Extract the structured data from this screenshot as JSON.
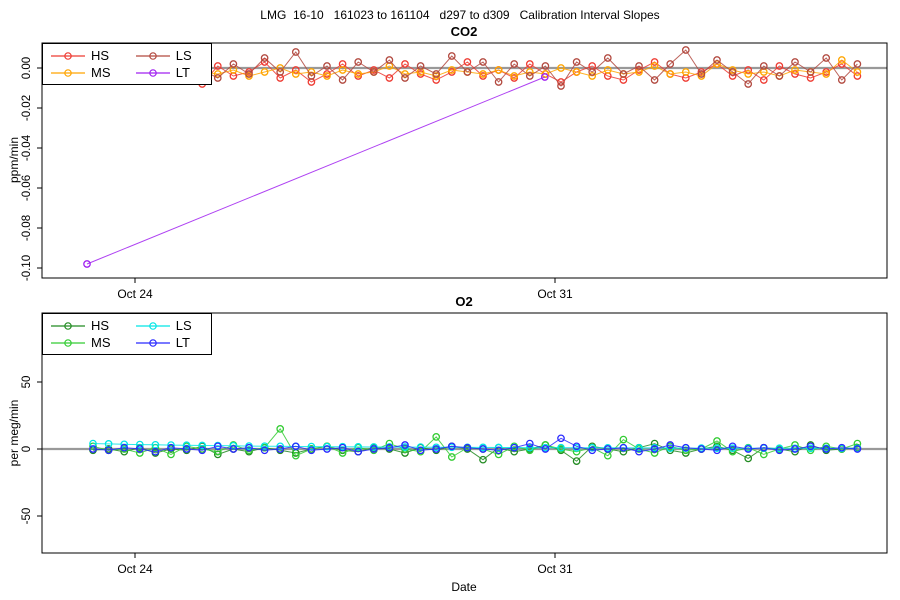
{
  "title": "LMG  16-10   161023 to 161104   d297 to d309   Calibration Interval Slopes",
  "x_axis": {
    "label": "Date",
    "tick_labels": [
      "Oct 24",
      "Oct 31"
    ],
    "tick_days": [
      24,
      31
    ]
  },
  "chart_data": [
    {
      "type": "line",
      "title": "CO2",
      "ylabel": "ppm/min",
      "ylim": [
        -0.105,
        0.012
      ],
      "grid": false,
      "zero_line_color": "#999999",
      "ytick_values": [
        0.0,
        -0.02,
        -0.04,
        -0.06,
        -0.08,
        -0.1
      ],
      "ytick_labels": [
        "0.00",
        "-0.02",
        "-0.04",
        "-0.06",
        "-0.08",
        "-0.10"
      ],
      "legend": {
        "position": "top-left",
        "entries": [
          {
            "name": "HS",
            "color": "#ee3b32"
          },
          {
            "name": "LS",
            "color": "#b2493f"
          },
          {
            "name": "MS",
            "color": "#ffa500"
          },
          {
            "name": "LT",
            "color": "#a020f0"
          }
        ]
      },
      "x_days": [
        23.3,
        23.56,
        23.82,
        24.08,
        24.34,
        24.6,
        24.86,
        25.12,
        25.38,
        25.64,
        25.9,
        26.16,
        26.42,
        26.68,
        26.94,
        27.2,
        27.46,
        27.72,
        27.98,
        28.24,
        28.5,
        28.76,
        29.02,
        29.28,
        29.54,
        29.8,
        30.06,
        30.32,
        30.58,
        30.84,
        31.1,
        31.36,
        31.62,
        31.88,
        32.14,
        32.4,
        32.66,
        32.92,
        33.18,
        33.44,
        33.7,
        33.96,
        34.22,
        34.48,
        34.74,
        35.0,
        35.26,
        35.52,
        35.78,
        36.04
      ],
      "series": [
        {
          "name": "HS",
          "color": "#ee3b32",
          "values": [
            -0.003,
            0.002,
            -0.005,
            -0.002,
            0.003,
            -0.006,
            -0.002,
            -0.008,
            0.001,
            -0.004,
            -0.002,
            0.003,
            -0.005,
            -0.001,
            -0.007,
            -0.003,
            0.002,
            -0.004,
            -0.001,
            -0.005,
            0.002,
            -0.003,
            -0.006,
            -0.002,
            0.003,
            -0.004,
            -0.001,
            -0.005,
            0.002,
            -0.003,
            -0.007,
            -0.002,
            0.001,
            -0.004,
            -0.006,
            -0.001,
            0.003,
            -0.003,
            -0.005,
            -0.002,
            0.002,
            -0.004,
            -0.001,
            -0.006,
            0.001,
            -0.003,
            -0.005,
            -0.002,
            0.002,
            -0.004
          ]
        },
        {
          "name": "MS",
          "color": "#ffa500",
          "values": [
            -0.002,
            -0.004,
            -0.001,
            -0.003,
            -0.002,
            -0.004,
            -0.001,
            -0.002,
            -0.003,
            -0.001,
            -0.004,
            -0.002,
            0.0,
            -0.003,
            -0.002,
            -0.004,
            -0.001,
            -0.003,
            -0.002,
            0.001,
            -0.003,
            -0.002,
            -0.004,
            -0.001,
            -0.002,
            -0.003,
            -0.001,
            -0.004,
            -0.002,
            -0.003,
            0.0,
            -0.002,
            -0.004,
            -0.001,
            -0.003,
            -0.002,
            0.001,
            -0.003,
            -0.002,
            -0.004,
            0.002,
            -0.001,
            -0.003,
            -0.002,
            -0.004,
            -0.001,
            -0.002,
            -0.003,
            0.004,
            -0.002
          ]
        },
        {
          "name": "LS",
          "color": "#b2493f",
          "values": [
            0.002,
            -0.004,
            0.003,
            -0.006,
            0.001,
            -0.003,
            0.004,
            -0.001,
            -0.005,
            0.002,
            -0.003,
            0.005,
            -0.002,
            0.008,
            -0.004,
            0.001,
            -0.006,
            0.003,
            -0.002,
            0.004,
            -0.005,
            0.001,
            -0.003,
            0.006,
            -0.002,
            0.003,
            -0.007,
            0.002,
            -0.004,
            0.001,
            -0.009,
            0.003,
            -0.002,
            0.005,
            -0.003,
            0.001,
            -0.006,
            0.002,
            0.009,
            -0.003,
            0.004,
            -0.002,
            -0.008,
            0.001,
            -0.004,
            0.003,
            -0.002,
            0.005,
            -0.006,
            0.002
          ]
        },
        {
          "name": "LT",
          "color": "#a020f0",
          "x": [
            23.2,
            30.83
          ],
          "values": [
            -0.098,
            -0.0045
          ]
        }
      ]
    },
    {
      "type": "line",
      "title": "O2",
      "ylabel": "per meg/min",
      "ylim": [
        -78,
        101
      ],
      "grid": false,
      "zero_line_color": "#999999",
      "ytick_values": [
        50,
        0,
        -50
      ],
      "ytick_labels": [
        "50",
        "0",
        "-50"
      ],
      "legend": {
        "position": "top-left",
        "entries": [
          {
            "name": "HS",
            "color": "#228b22"
          },
          {
            "name": "LS",
            "color": "#00e5e5"
          },
          {
            "name": "MS",
            "color": "#33cc33"
          },
          {
            "name": "LT",
            "color": "#2929ff"
          }
        ]
      },
      "x_days": [
        23.3,
        23.56,
        23.82,
        24.08,
        24.34,
        24.6,
        24.86,
        25.12,
        25.38,
        25.64,
        25.9,
        26.16,
        26.42,
        26.68,
        26.94,
        27.2,
        27.46,
        27.72,
        27.98,
        28.24,
        28.5,
        28.76,
        29.02,
        29.28,
        29.54,
        29.8,
        30.06,
        30.32,
        30.58,
        30.84,
        31.1,
        31.36,
        31.62,
        31.88,
        32.14,
        32.4,
        32.66,
        32.92,
        33.18,
        33.44,
        33.7,
        33.96,
        34.22,
        34.48,
        34.74,
        35.0,
        35.26,
        35.52,
        35.78,
        36.04
      ],
      "series": [
        {
          "name": "HS",
          "color": "#228b22",
          "values": [
            -1,
            0,
            -2,
            1,
            -3,
            0,
            -1,
            2,
            -4,
            0,
            -2,
            1,
            -1,
            -3,
            0,
            2,
            -1,
            -2,
            1,
            0,
            -3,
            1,
            -1,
            2,
            0,
            -8,
            1,
            -2,
            0,
            3,
            -1,
            -9,
            2,
            0,
            -2,
            1,
            4,
            -1,
            -3,
            0,
            2,
            -1,
            -7,
            1,
            0,
            -2,
            3,
            -1,
            0,
            1
          ]
        },
        {
          "name": "MS",
          "color": "#33cc33",
          "values": [
            2,
            -1,
            0,
            -3,
            1,
            -4,
            2,
            0,
            -2,
            3,
            -1,
            1,
            15,
            -5,
            0,
            2,
            -3,
            1,
            -1,
            4,
            0,
            -2,
            9,
            -6,
            1,
            0,
            -4,
            2,
            -1,
            3,
            0,
            -2,
            1,
            -5,
            7,
            0,
            -3,
            2,
            -1,
            0,
            6,
            -2,
            1,
            -4,
            0,
            3,
            -1,
            2,
            0,
            4
          ]
        },
        {
          "name": "LS",
          "color": "#00e5e5",
          "values": [
            4,
            3.8,
            3.5,
            3.3,
            3.1,
            2.9,
            2.8,
            2.6,
            2.5,
            2.4,
            2.2,
            2.1,
            2,
            1.9,
            1.8,
            1.7,
            1.7,
            1.6,
            1.5,
            1.5,
            1.4,
            1.4,
            1.3,
            1.3,
            1.2,
            1.2,
            1.1,
            1.1,
            1,
            1,
            1,
            0.9,
            0.9,
            0.9,
            0.8,
            0.8,
            0.8,
            0.7,
            0.7,
            0.7,
            0.7,
            0.6,
            0.6,
            0.6,
            0.6,
            0.5,
            0.5,
            0.5,
            0.5,
            0.5
          ]
        },
        {
          "name": "LT",
          "color": "#2929ff",
          "values": [
            0,
            -1,
            1,
            0,
            -2,
            1,
            0,
            -1,
            2,
            0,
            1,
            -1,
            0,
            2,
            -1,
            0,
            1,
            -2,
            0,
            1,
            3,
            -1,
            0,
            2,
            1,
            0,
            -1,
            1,
            4,
            0,
            8,
            2,
            -1,
            0,
            1,
            -2,
            0,
            3,
            1,
            0,
            -1,
            2,
            0,
            1,
            -1,
            0,
            2,
            0,
            1,
            0
          ]
        }
      ]
    }
  ]
}
